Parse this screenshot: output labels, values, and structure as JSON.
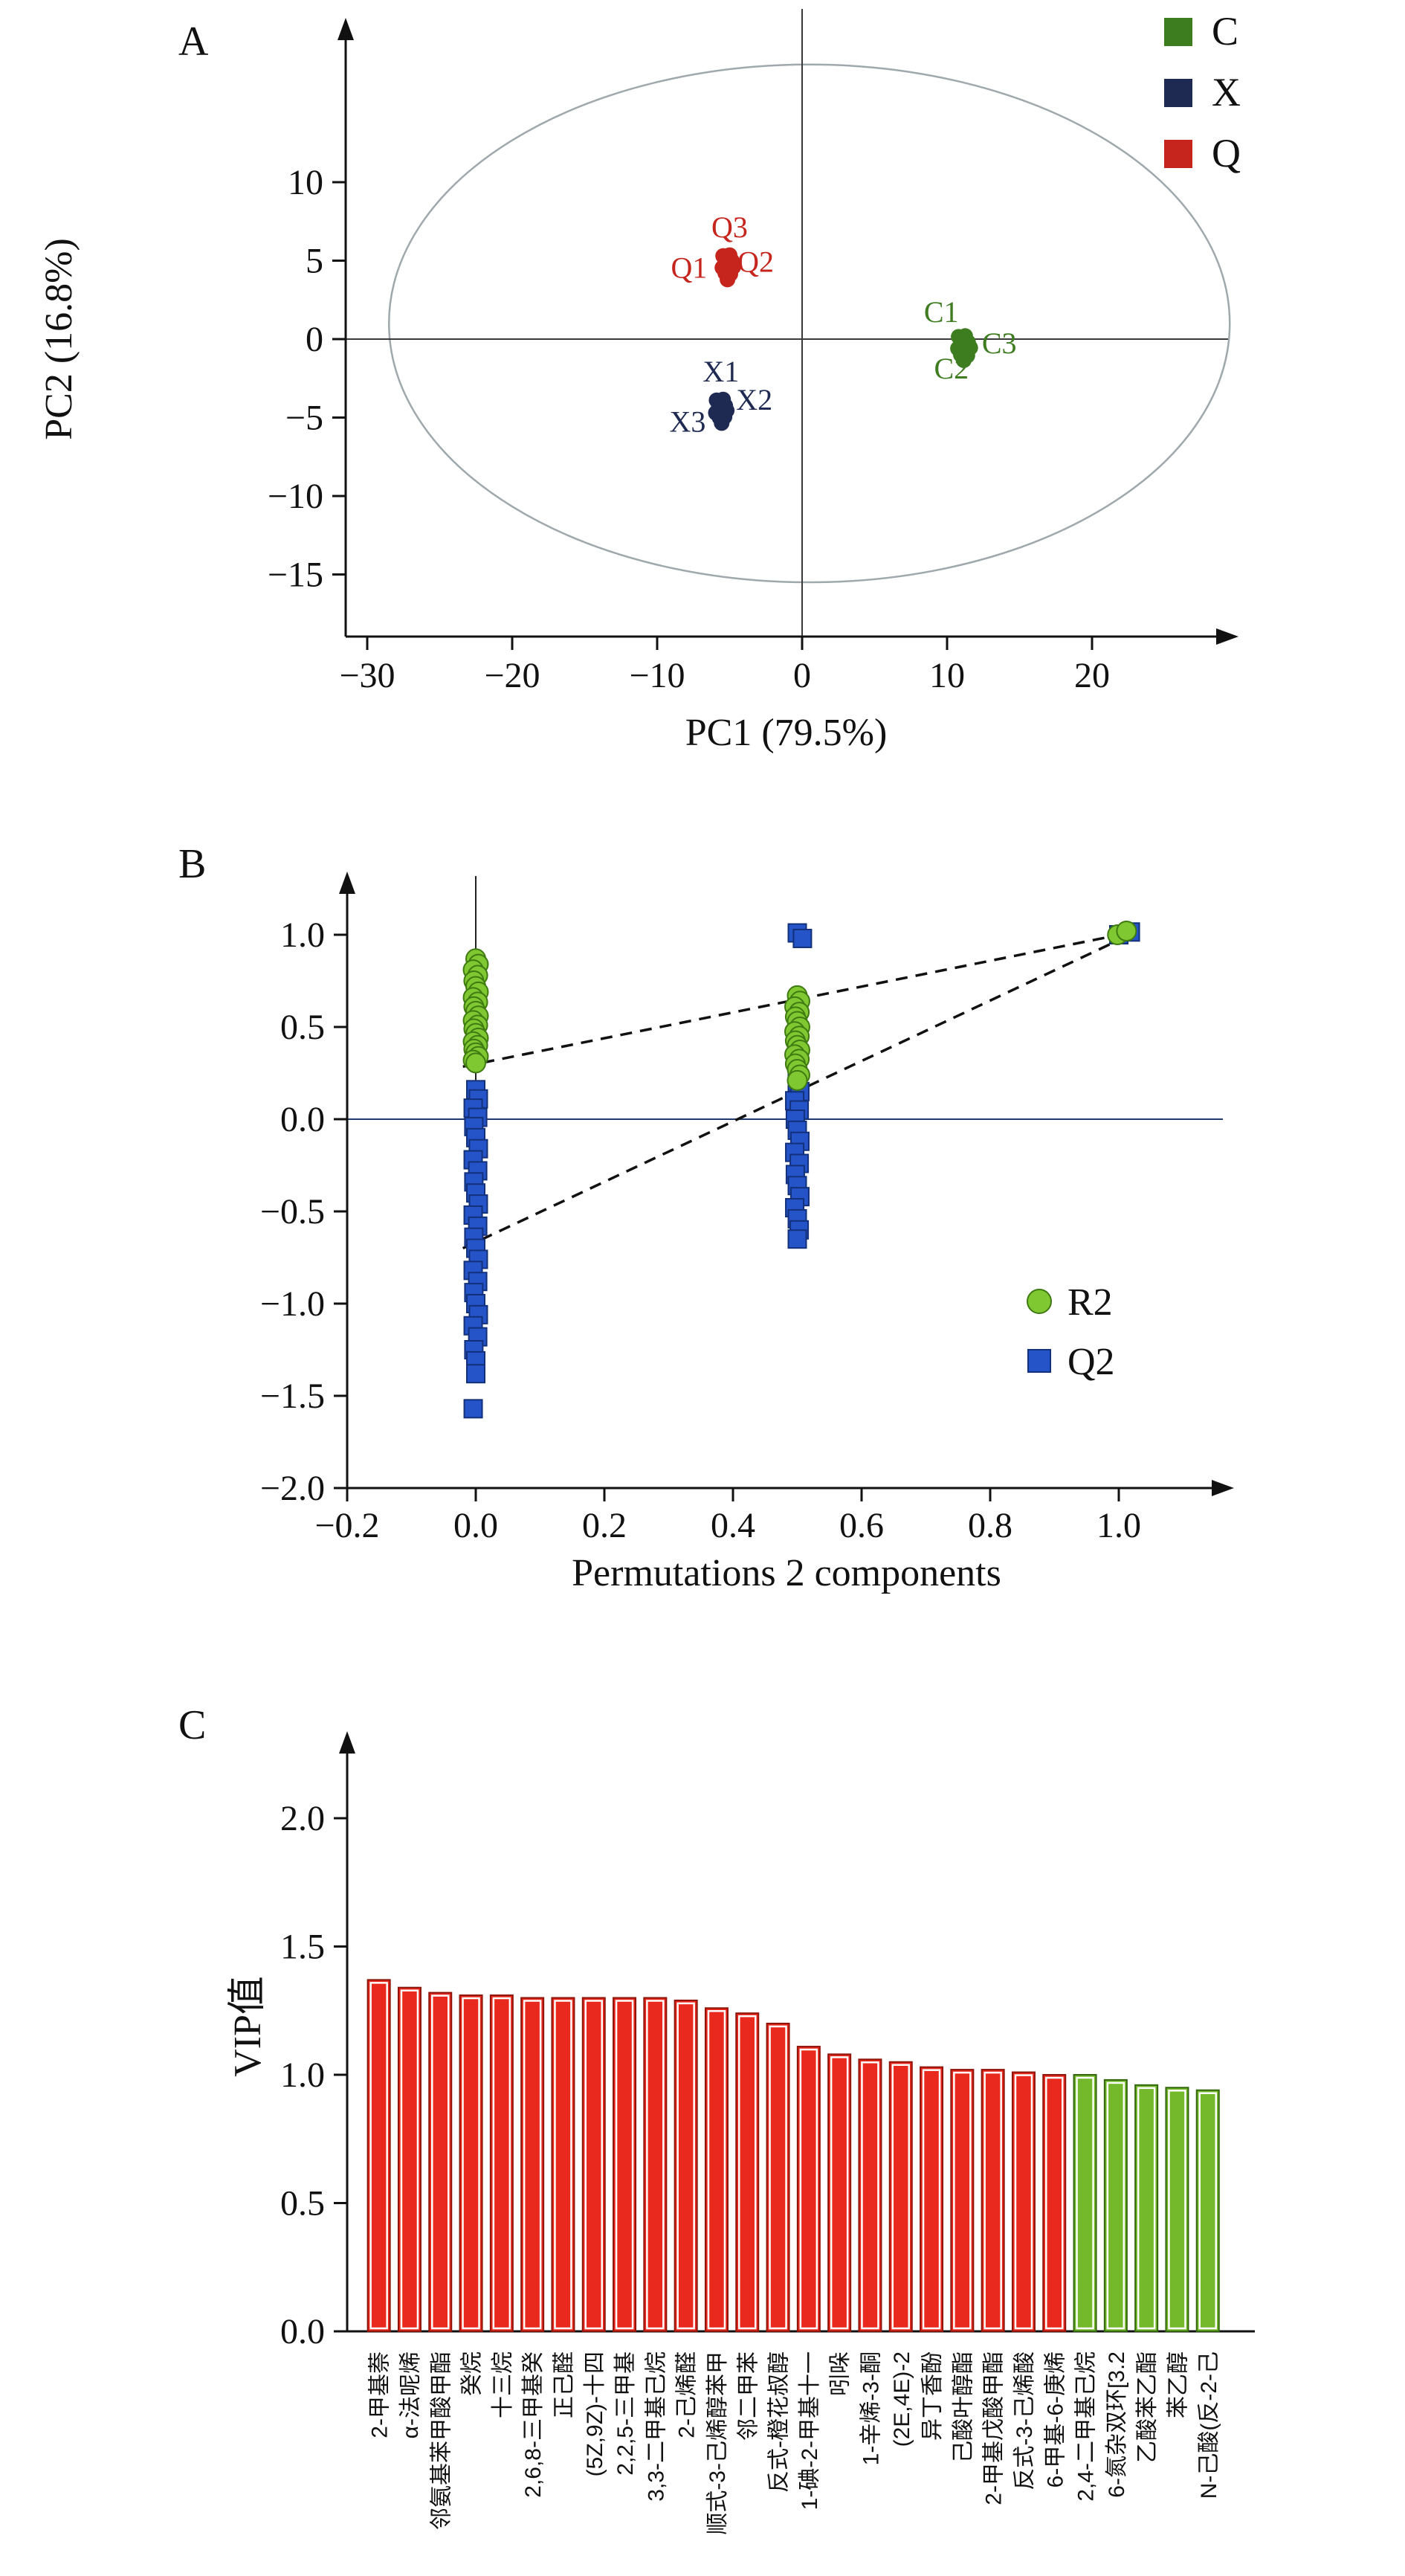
{
  "panels": {
    "a": {
      "label": "A"
    },
    "b": {
      "label": "B"
    },
    "c": {
      "label": "C"
    }
  },
  "chart_data": [
    {
      "id": "pca-scores",
      "type": "scatter",
      "xlabel": "PC1 (79.5%)",
      "ylabel": "PC2 (16.8%)",
      "xlim": [
        -31.5,
        28.5
      ],
      "ylim": [
        -19,
        20.5
      ],
      "xticks": [
        [
          -30,
          "−30"
        ],
        [
          -20,
          "−20"
        ],
        [
          -10,
          "−10"
        ],
        [
          0,
          "0"
        ],
        [
          10,
          "10"
        ],
        [
          20,
          "20"
        ]
      ],
      "yticks": [
        [
          -15,
          "−15"
        ],
        [
          -10,
          "−10"
        ],
        [
          -5,
          "−5"
        ],
        [
          0,
          "0"
        ],
        [
          5,
          "5"
        ],
        [
          10,
          "10"
        ]
      ],
      "ellipse": {
        "cx": 0.5,
        "cy": 1.0,
        "rx": 29.0,
        "ry": 16.5
      },
      "legend": [
        {
          "name": "C",
          "color": "#3e7c20"
        },
        {
          "name": "X",
          "color": "#1e2a52"
        },
        {
          "name": "Q",
          "color": "#c5251c"
        }
      ],
      "series": [
        {
          "name": "C",
          "color": "#3e7c20",
          "points": [
            [
              10.8,
              0.15
            ],
            [
              11.25,
              0.2
            ],
            [
              11.0,
              -0.25
            ],
            [
              11.45,
              -0.2
            ],
            [
              10.75,
              -0.6
            ],
            [
              11.2,
              -0.65
            ],
            [
              11.6,
              -0.55
            ],
            [
              10.95,
              -1.0
            ],
            [
              11.4,
              -1.05
            ],
            [
              11.15,
              -1.35
            ]
          ],
          "labels": [
            {
              "text": "C1",
              "x": 9.6,
              "y": 1.1
            },
            {
              "text": "C3",
              "x": 13.6,
              "y": -0.9
            },
            {
              "text": "C2",
              "x": 10.3,
              "y": -2.5
            }
          ]
        },
        {
          "name": "X",
          "color": "#1e2a52",
          "points": [
            [
              -5.9,
              -3.9
            ],
            [
              -5.45,
              -3.85
            ],
            [
              -5.75,
              -4.3
            ],
            [
              -5.3,
              -4.25
            ],
            [
              -5.95,
              -4.7
            ],
            [
              -5.55,
              -4.6
            ],
            [
              -5.2,
              -4.55
            ],
            [
              -5.7,
              -5.0
            ],
            [
              -5.35,
              -4.95
            ],
            [
              -5.55,
              -5.35
            ]
          ],
          "labels": [
            {
              "text": "X1",
              "x": -5.6,
              "y": -2.7
            },
            {
              "text": "X2",
              "x": -3.3,
              "y": -4.5
            },
            {
              "text": "X3",
              "x": -7.9,
              "y": -5.9
            }
          ]
        },
        {
          "name": "Q",
          "color": "#c5251c",
          "points": [
            [
              -5.45,
              5.3
            ],
            [
              -5.0,
              5.35
            ],
            [
              -5.3,
              4.9
            ],
            [
              -4.85,
              5.0
            ],
            [
              -5.5,
              4.55
            ],
            [
              -5.1,
              4.6
            ],
            [
              -4.75,
              4.6
            ],
            [
              -5.3,
              4.2
            ],
            [
              -4.95,
              4.15
            ],
            [
              -5.15,
              3.8
            ]
          ],
          "labels": [
            {
              "text": "Q3",
              "x": -5.0,
              "y": 6.5
            },
            {
              "text": "Q1",
              "x": -7.8,
              "y": 3.9
            },
            {
              "text": "Q2",
              "x": -3.2,
              "y": 4.3
            }
          ]
        }
      ]
    },
    {
      "id": "permutation-test",
      "type": "scatter",
      "xlabel": "Permutations 2 components",
      "ylabel": "",
      "xlim": [
        -0.2,
        1.18
      ],
      "ylim": [
        -2.0,
        1.35
      ],
      "xticks": [
        [
          -0.2,
          "−0.2"
        ],
        [
          0,
          "0.0"
        ],
        [
          0.2,
          "0.2"
        ],
        [
          0.4,
          "0.4"
        ],
        [
          0.6,
          "0.6"
        ],
        [
          0.8,
          "0.8"
        ],
        [
          1,
          "1.0"
        ]
      ],
      "yticks": [
        [
          -2,
          "−2.0"
        ],
        [
          -1.5,
          "−1.5"
        ],
        [
          -1,
          "−1.0"
        ],
        [
          -0.5,
          "−0.5"
        ],
        [
          0,
          "0.0"
        ],
        [
          0.5,
          "0.5"
        ],
        [
          1,
          "1.0"
        ]
      ],
      "lines": [
        [
          -0.02,
          0.285,
          1.03,
          1.02
        ],
        [
          -0.02,
          -0.7,
          1.03,
          1.02
        ]
      ],
      "legend": [
        {
          "name": "R2",
          "marker": "circle",
          "color": "#7fc831",
          "edge": "#3f7a12"
        },
        {
          "name": "Q2",
          "marker": "square",
          "color": "#2553c8",
          "edge": "#13317a"
        }
      ],
      "series": [
        {
          "name": "Q2",
          "marker": "square",
          "color": "#2553c8",
          "edge": "#13317a",
          "points": [
            [
              0,
              0.16
            ],
            [
              0.004,
              0.11
            ],
            [
              -0.004,
              0.06
            ],
            [
              0.003,
              0.01
            ],
            [
              -0.003,
              -0.04
            ],
            [
              0,
              -0.1
            ],
            [
              0.004,
              -0.16
            ],
            [
              -0.004,
              -0.22
            ],
            [
              0.003,
              -0.28
            ],
            [
              -0.003,
              -0.34
            ],
            [
              0,
              -0.4
            ],
            [
              0.004,
              -0.46
            ],
            [
              -0.004,
              -0.52
            ],
            [
              0.003,
              -0.58
            ],
            [
              -0.003,
              -0.64
            ],
            [
              0,
              -0.7
            ],
            [
              0.004,
              -0.76
            ],
            [
              -0.004,
              -0.82
            ],
            [
              0.003,
              -0.88
            ],
            [
              -0.003,
              -0.94
            ],
            [
              0,
              -1.0
            ],
            [
              0.004,
              -1.06
            ],
            [
              -0.004,
              -1.12
            ],
            [
              0.003,
              -1.18
            ],
            [
              -0.003,
              -1.25
            ],
            [
              0,
              -1.31
            ],
            [
              0,
              -1.38
            ],
            [
              -0.004,
              -1.57
            ],
            [
              0.5,
              1.01
            ],
            [
              0.508,
              0.98
            ],
            [
              0.5,
              0.2
            ],
            [
              0.504,
              0.15
            ],
            [
              0.496,
              0.1
            ],
            [
              0.503,
              0.05
            ],
            [
              0.497,
              0.0
            ],
            [
              0.5,
              -0.06
            ],
            [
              0.504,
              -0.12
            ],
            [
              0.496,
              -0.18
            ],
            [
              0.503,
              -0.24
            ],
            [
              0.497,
              -0.3
            ],
            [
              0.5,
              -0.36
            ],
            [
              0.504,
              -0.42
            ],
            [
              0.496,
              -0.48
            ],
            [
              0.5,
              -0.54
            ],
            [
              0.503,
              -0.6
            ],
            [
              0.5,
              -0.65
            ],
            [
              1.0,
              1.0
            ],
            [
              1.018,
              1.015
            ]
          ]
        },
        {
          "name": "R2",
          "marker": "circle",
          "color": "#7fc831",
          "edge": "#3f7a12",
          "points": [
            [
              0,
              0.87
            ],
            [
              0.004,
              0.84
            ],
            [
              -0.004,
              0.81
            ],
            [
              0.003,
              0.78
            ],
            [
              -0.003,
              0.75
            ],
            [
              0,
              0.72
            ],
            [
              0.004,
              0.69
            ],
            [
              -0.004,
              0.66
            ],
            [
              0.003,
              0.635
            ],
            [
              -0.003,
              0.61
            ],
            [
              0,
              0.585
            ],
            [
              0.004,
              0.56
            ],
            [
              -0.004,
              0.535
            ],
            [
              0.003,
              0.51
            ],
            [
              -0.003,
              0.49
            ],
            [
              0,
              0.465
            ],
            [
              0.004,
              0.44
            ],
            [
              -0.004,
              0.42
            ],
            [
              0.003,
              0.4
            ],
            [
              -0.003,
              0.38
            ],
            [
              0,
              0.36
            ],
            [
              0.004,
              0.34
            ],
            [
              -0.004,
              0.32
            ],
            [
              0,
              0.305
            ],
            [
              0.5,
              0.67
            ],
            [
              0.504,
              0.64
            ],
            [
              0.496,
              0.61
            ],
            [
              0.503,
              0.58
            ],
            [
              0.497,
              0.555
            ],
            [
              0.5,
              0.53
            ],
            [
              0.504,
              0.5
            ],
            [
              0.496,
              0.475
            ],
            [
              0.503,
              0.45
            ],
            [
              0.497,
              0.425
            ],
            [
              0.5,
              0.4
            ],
            [
              0.504,
              0.375
            ],
            [
              0.496,
              0.35
            ],
            [
              0.503,
              0.325
            ],
            [
              0.497,
              0.3
            ],
            [
              0.5,
              0.27
            ],
            [
              0.504,
              0.24
            ],
            [
              0.5,
              0.21
            ],
            [
              0.998,
              1.0
            ],
            [
              1.012,
              1.02
            ]
          ]
        }
      ]
    },
    {
      "id": "vip-scores",
      "type": "bar",
      "ylabel": "VIP值",
      "ylim": [
        0,
        2.35
      ],
      "yticks": [
        [
          0,
          "0.0"
        ],
        [
          0.5,
          "0.5"
        ],
        [
          1,
          "1.0"
        ],
        [
          1.5,
          "1.5"
        ],
        [
          2,
          "2.0"
        ]
      ],
      "red_count": 23,
      "colors": {
        "red": "#e9291d",
        "red_edge": "#8f150b",
        "green": "#74b92b",
        "green_edge": "#33660d"
      },
      "categories": [
        "2-甲基萘",
        "α-法呢烯",
        "邻氨基苯甲酸甲酯",
        "癸烷",
        "十三烷",
        "2,6,8-三甲基癸",
        "正己醛",
        "(5Z,9Z)-十四",
        "2,2,5-三甲基",
        "3,3-二甲基己烷",
        "2-己烯醛",
        "顺式-3-己烯醇苯甲",
        "邻二甲苯",
        "反式-橙花叔醇",
        "1-碘-2-甲基十一",
        "吲哚",
        "1-辛烯-3-酮",
        "(2E,4E)-2",
        "异丁香酚",
        "己酸叶醇酯",
        "2-甲基戊酸甲酯",
        "反式-3-己烯酸",
        "6-甲基-6-庚烯",
        "2,4-二甲基己烷",
        "6-氮杂双环[3.2",
        "乙酸苯乙酯",
        "苯乙醇",
        "N-己酸(反-2-己"
      ],
      "values": [
        1.37,
        1.34,
        1.32,
        1.31,
        1.31,
        1.3,
        1.3,
        1.3,
        1.3,
        1.3,
        1.29,
        1.26,
        1.24,
        1.2,
        1.11,
        1.08,
        1.06,
        1.05,
        1.03,
        1.02,
        1.02,
        1.01,
        1.0,
        1.0,
        0.98,
        0.96,
        0.95,
        0.94
      ]
    }
  ]
}
